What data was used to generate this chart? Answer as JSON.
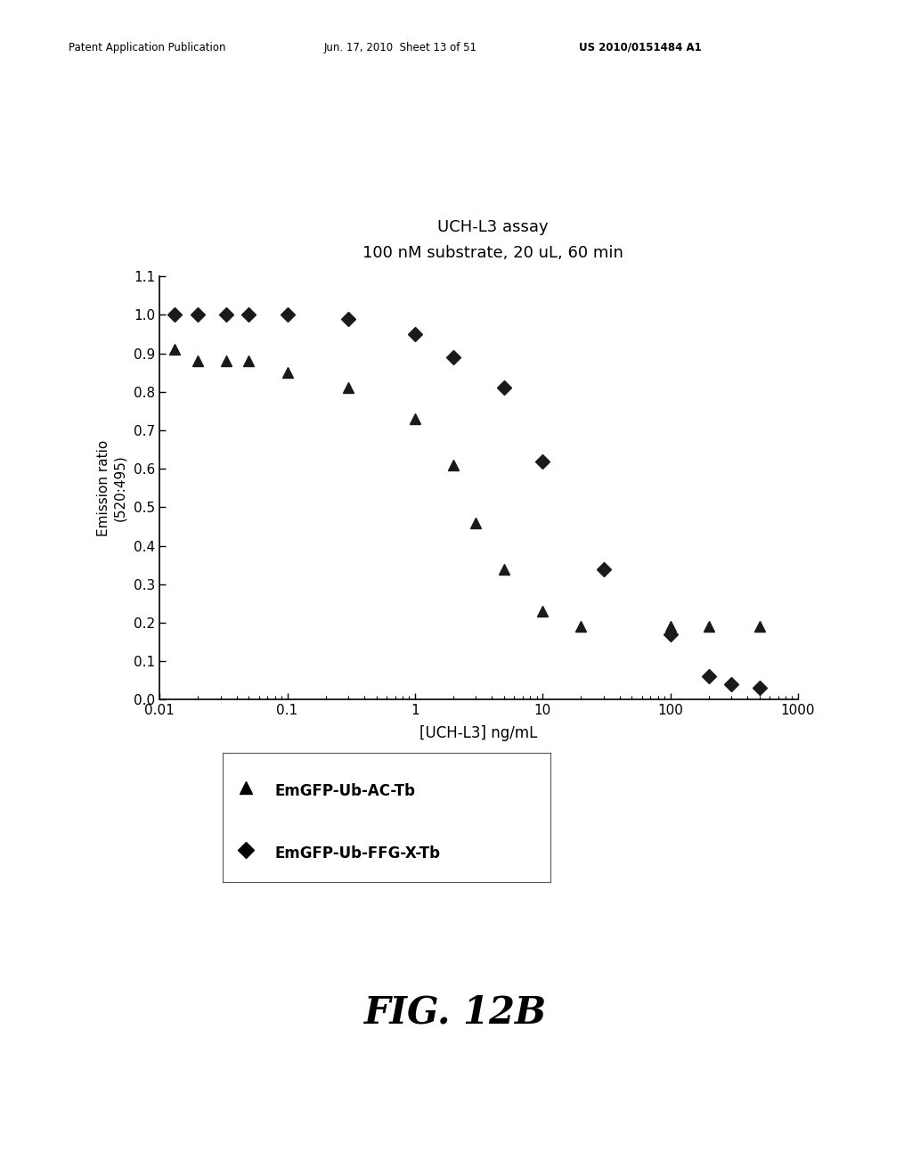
{
  "title_line1": "UCH-L3 assay",
  "title_line2": "100 nM substrate, 20 uL, 60 min",
  "xlabel": "[UCH-L3] ng/mL",
  "ylabel": "Emission ratio\n(520:495)",
  "xlim": [
    0.01,
    1000
  ],
  "ylim": [
    0.0,
    1.1
  ],
  "yticks": [
    0.0,
    0.1,
    0.2,
    0.3,
    0.4,
    0.5,
    0.6,
    0.7,
    0.8,
    0.9,
    1.0,
    1.1
  ],
  "series": [
    {
      "label": "EmGFP-Ub-AC-Tb",
      "marker": "^",
      "color": "#1a1a1a",
      "x": [
        0.013,
        0.02,
        0.033,
        0.05,
        0.1,
        0.3,
        1.0,
        2.0,
        3.0,
        5.0,
        10.0,
        20.0,
        100.0,
        200.0,
        500.0
      ],
      "y": [
        0.91,
        0.88,
        0.88,
        0.88,
        0.85,
        0.81,
        0.73,
        0.61,
        0.46,
        0.34,
        0.23,
        0.19,
        0.19,
        0.19,
        0.19
      ]
    },
    {
      "label": "EmGFP-Ub-FFG-X-Tb",
      "marker": "D",
      "color": "#1a1a1a",
      "x": [
        0.013,
        0.02,
        0.033,
        0.05,
        0.1,
        0.3,
        1.0,
        2.0,
        5.0,
        10.0,
        30.0,
        100.0,
        200.0,
        300.0,
        500.0
      ],
      "y": [
        1.0,
        1.0,
        1.0,
        1.0,
        1.0,
        0.99,
        0.95,
        0.89,
        0.81,
        0.62,
        0.34,
        0.17,
        0.06,
        0.04,
        0.03
      ]
    }
  ],
  "header_left": "Patent Application Publication",
  "header_center": "Jun. 17, 2010  Sheet 13 of 51",
  "header_right": "US 2010/0151484 A1",
  "figure_label": "FIG. 12B",
  "background_color": "#ffffff",
  "marker_size": 8
}
